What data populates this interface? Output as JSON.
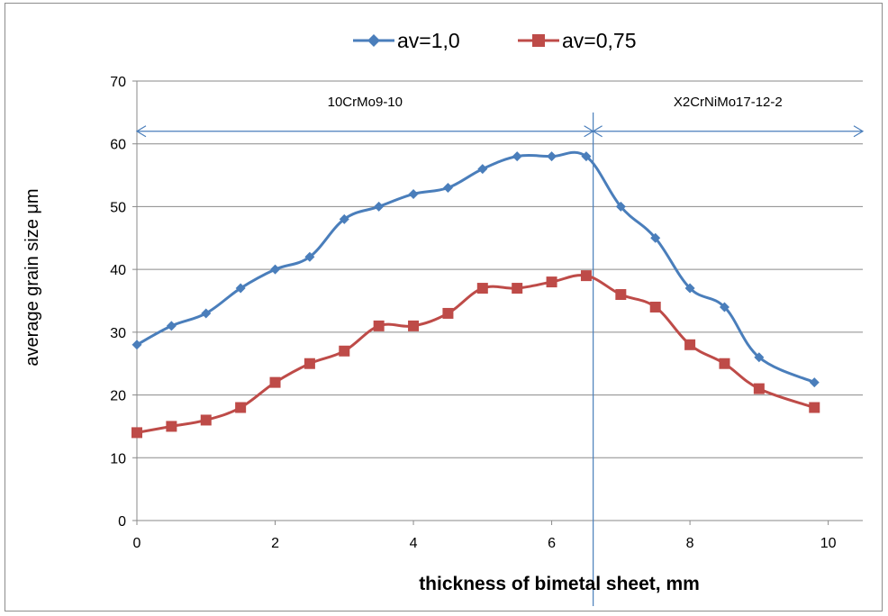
{
  "chart_data": {
    "type": "line",
    "xlabel": "thickness of bimetal sheet, mm",
    "ylabel": "average grain size  μm",
    "xlim": [
      0,
      10.5
    ],
    "ylim": [
      0,
      70
    ],
    "x_ticks": [
      0,
      2,
      4,
      6,
      8,
      10
    ],
    "y_ticks": [
      0,
      10,
      20,
      30,
      40,
      50,
      60,
      70
    ],
    "grid": "horizontal",
    "legend_position": "top",
    "series": [
      {
        "name": "av=1,0",
        "color": "#4a7ebb",
        "marker": "diamond",
        "x": [
          0,
          0.5,
          1,
          1.5,
          2,
          2.5,
          3,
          3.5,
          4,
          4.5,
          5,
          5.5,
          6,
          6.5,
          7,
          7.5,
          8,
          8.5,
          9,
          9.8
        ],
        "y": [
          28,
          31,
          33,
          37,
          40,
          42,
          48,
          50,
          52,
          53,
          56,
          58,
          58,
          58,
          50,
          45,
          37,
          34,
          26,
          22
        ]
      },
      {
        "name": "av=0,75",
        "color": "#be4b48",
        "marker": "square",
        "x": [
          0,
          0.5,
          1,
          1.5,
          2,
          2.5,
          3,
          3.5,
          4,
          4.5,
          5,
          5.5,
          6,
          6.5,
          7,
          7.5,
          8,
          8.5,
          9,
          9.8
        ],
        "y": [
          14,
          15,
          16,
          18,
          22,
          25,
          27,
          31,
          31,
          33,
          37,
          37,
          38,
          39,
          36,
          34,
          28,
          25,
          21,
          18
        ]
      }
    ],
    "annotations": {
      "boundary_x": 6.6,
      "arrow_y": 62,
      "left_label": "10CrMo9-10",
      "right_label": "X2CrNiMo17-12-2"
    }
  }
}
